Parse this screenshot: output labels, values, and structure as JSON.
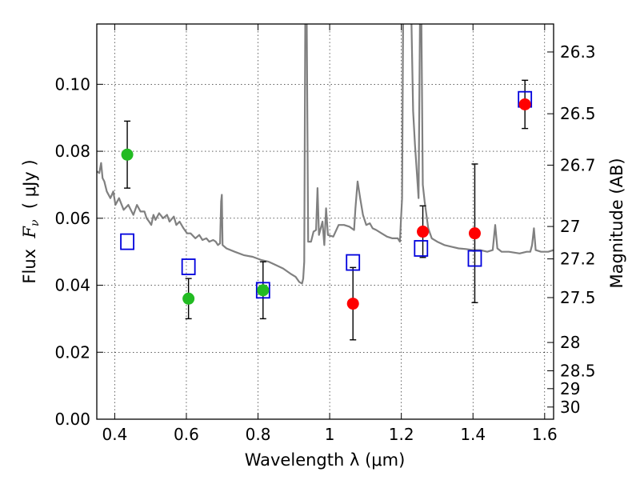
{
  "chart_data": {
    "type": "scatter",
    "xlabel": "Wavelength  λ (μm)",
    "ylabel_prefix": "Flux  ",
    "ylabel_symbol": "F",
    "ylabel_sub": "ν",
    "ylabel_suffix": "  ( μJy )",
    "y2label": "Magnitude (AB)",
    "xlim": [
      0.35,
      1.625
    ],
    "ylim": [
      0.0,
      0.118
    ],
    "grid": true,
    "x_ticks": [
      0.4,
      0.6,
      0.8,
      1.0,
      1.2,
      1.4,
      1.6
    ],
    "x_tick_labels": [
      "0.4",
      "0.6",
      "0.8",
      "1",
      "1.2",
      "1.4",
      "1.6"
    ],
    "y_ticks": [
      0.0,
      0.02,
      0.04,
      0.06,
      0.08,
      0.1
    ],
    "y_tick_labels": [
      "0.00",
      "0.02",
      "0.04",
      "0.06",
      "0.08",
      "0.10"
    ],
    "mag_ticks": [
      26.3,
      26.5,
      26.7,
      27,
      27.2,
      27.5,
      28,
      28.5,
      29,
      30
    ],
    "mag_tick_labels": [
      "26.3",
      "26.5",
      "26.7",
      "27",
      "27.2",
      "27.5",
      "28",
      "28.5",
      "29",
      "30"
    ],
    "colors": {
      "observed_optical": "#22bb22",
      "observed_nir": "#ff0000",
      "model": "#0000dd",
      "sed": "#808080"
    },
    "observed_optical": [
      {
        "x": 0.435,
        "y": 0.079,
        "err": 0.01
      },
      {
        "x": 0.606,
        "y": 0.036,
        "err": 0.006
      },
      {
        "x": 0.814,
        "y": 0.0385,
        "err": 0.0085
      }
    ],
    "observed_nir": [
      {
        "x": 1.065,
        "y": 0.0345,
        "err": 0.0108
      },
      {
        "x": 1.26,
        "y": 0.056,
        "err": 0.0077
      },
      {
        "x": 1.405,
        "y": 0.0555,
        "err": 0.0207
      },
      {
        "x": 1.545,
        "y": 0.094,
        "err": 0.0072
      }
    ],
    "model_photometry": [
      {
        "x": 0.435,
        "y": 0.053
      },
      {
        "x": 0.606,
        "y": 0.0455
      },
      {
        "x": 0.814,
        "y": 0.0385
      },
      {
        "x": 1.065,
        "y": 0.0468
      },
      {
        "x": 1.255,
        "y": 0.051
      },
      {
        "x": 1.405,
        "y": 0.048
      },
      {
        "x": 1.545,
        "y": 0.0955
      }
    ],
    "sed_model": [
      [
        0.35,
        0.074
      ],
      [
        0.357,
        0.0735
      ],
      [
        0.362,
        0.0765
      ],
      [
        0.366,
        0.072
      ],
      [
        0.371,
        0.071
      ],
      [
        0.378,
        0.068
      ],
      [
        0.388,
        0.066
      ],
      [
        0.396,
        0.068
      ],
      [
        0.402,
        0.064
      ],
      [
        0.412,
        0.066
      ],
      [
        0.425,
        0.0625
      ],
      [
        0.438,
        0.064
      ],
      [
        0.452,
        0.061
      ],
      [
        0.462,
        0.064
      ],
      [
        0.472,
        0.062
      ],
      [
        0.483,
        0.062
      ],
      [
        0.489,
        0.06
      ],
      [
        0.496,
        0.059
      ],
      [
        0.502,
        0.058
      ],
      [
        0.508,
        0.061
      ],
      [
        0.514,
        0.0595
      ],
      [
        0.524,
        0.0615
      ],
      [
        0.535,
        0.06
      ],
      [
        0.546,
        0.061
      ],
      [
        0.553,
        0.059
      ],
      [
        0.565,
        0.0605
      ],
      [
        0.572,
        0.058
      ],
      [
        0.581,
        0.059
      ],
      [
        0.592,
        0.057
      ],
      [
        0.602,
        0.0555
      ],
      [
        0.612,
        0.0555
      ],
      [
        0.625,
        0.054
      ],
      [
        0.636,
        0.055
      ],
      [
        0.645,
        0.0535
      ],
      [
        0.656,
        0.054
      ],
      [
        0.664,
        0.053
      ],
      [
        0.675,
        0.0535
      ],
      [
        0.682,
        0.053
      ],
      [
        0.688,
        0.052
      ],
      [
        0.694,
        0.0525
      ],
      [
        0.697,
        0.065
      ],
      [
        0.699,
        0.067
      ],
      [
        0.701,
        0.052
      ],
      [
        0.712,
        0.051
      ],
      [
        0.735,
        0.05
      ],
      [
        0.76,
        0.049
      ],
      [
        0.785,
        0.0485
      ],
      [
        0.81,
        0.0475
      ],
      [
        0.83,
        0.047
      ],
      [
        0.85,
        0.046
      ],
      [
        0.87,
        0.045
      ],
      [
        0.89,
        0.0435
      ],
      [
        0.905,
        0.0425
      ],
      [
        0.915,
        0.041
      ],
      [
        0.923,
        0.0405
      ],
      [
        0.926,
        0.042
      ],
      [
        0.929,
        0.047
      ],
      [
        0.932,
        0.12
      ],
      [
        0.936,
        0.12
      ],
      [
        0.94,
        0.053
      ],
      [
        0.948,
        0.053
      ],
      [
        0.955,
        0.056
      ],
      [
        0.962,
        0.0565
      ],
      [
        0.966,
        0.069
      ],
      [
        0.97,
        0.055
      ],
      [
        0.98,
        0.059
      ],
      [
        0.985,
        0.052
      ],
      [
        0.99,
        0.063
      ],
      [
        0.995,
        0.055
      ],
      [
        1.01,
        0.0545
      ],
      [
        1.025,
        0.058
      ],
      [
        1.04,
        0.058
      ],
      [
        1.055,
        0.0575
      ],
      [
        1.068,
        0.0565
      ],
      [
        1.072,
        0.063
      ],
      [
        1.078,
        0.071
      ],
      [
        1.085,
        0.066
      ],
      [
        1.093,
        0.061
      ],
      [
        1.102,
        0.058
      ],
      [
        1.112,
        0.0585
      ],
      [
        1.12,
        0.057
      ],
      [
        1.13,
        0.0565
      ],
      [
        1.145,
        0.0555
      ],
      [
        1.16,
        0.0545
      ],
      [
        1.175,
        0.054
      ],
      [
        1.19,
        0.054
      ],
      [
        1.196,
        0.053
      ],
      [
        1.199,
        0.0595
      ],
      [
        1.202,
        0.066
      ],
      [
        1.205,
        0.12
      ],
      [
        1.208,
        0.12
      ],
      [
        1.212,
        0.12
      ],
      [
        1.218,
        0.12
      ],
      [
        1.222,
        0.12
      ],
      [
        1.228,
        0.12
      ],
      [
        1.233,
        0.092
      ],
      [
        1.238,
        0.082
      ],
      [
        1.244,
        0.0725
      ],
      [
        1.248,
        0.066
      ],
      [
        1.252,
        0.12
      ],
      [
        1.256,
        0.12
      ],
      [
        1.26,
        0.07
      ],
      [
        1.265,
        0.065
      ],
      [
        1.275,
        0.057
      ],
      [
        1.285,
        0.054
      ],
      [
        1.3,
        0.053
      ],
      [
        1.32,
        0.052
      ],
      [
        1.34,
        0.0515
      ],
      [
        1.36,
        0.051
      ],
      [
        1.38,
        0.0508
      ],
      [
        1.4,
        0.0505
      ],
      [
        1.42,
        0.0505
      ],
      [
        1.44,
        0.05
      ],
      [
        1.455,
        0.0505
      ],
      [
        1.462,
        0.058
      ],
      [
        1.468,
        0.051
      ],
      [
        1.48,
        0.05
      ],
      [
        1.5,
        0.05
      ],
      [
        1.53,
        0.0495
      ],
      [
        1.55,
        0.05
      ],
      [
        1.56,
        0.05
      ],
      [
        1.565,
        0.052
      ],
      [
        1.57,
        0.057
      ],
      [
        1.575,
        0.0505
      ],
      [
        1.59,
        0.05
      ],
      [
        1.61,
        0.05
      ],
      [
        1.625,
        0.0505
      ]
    ]
  }
}
